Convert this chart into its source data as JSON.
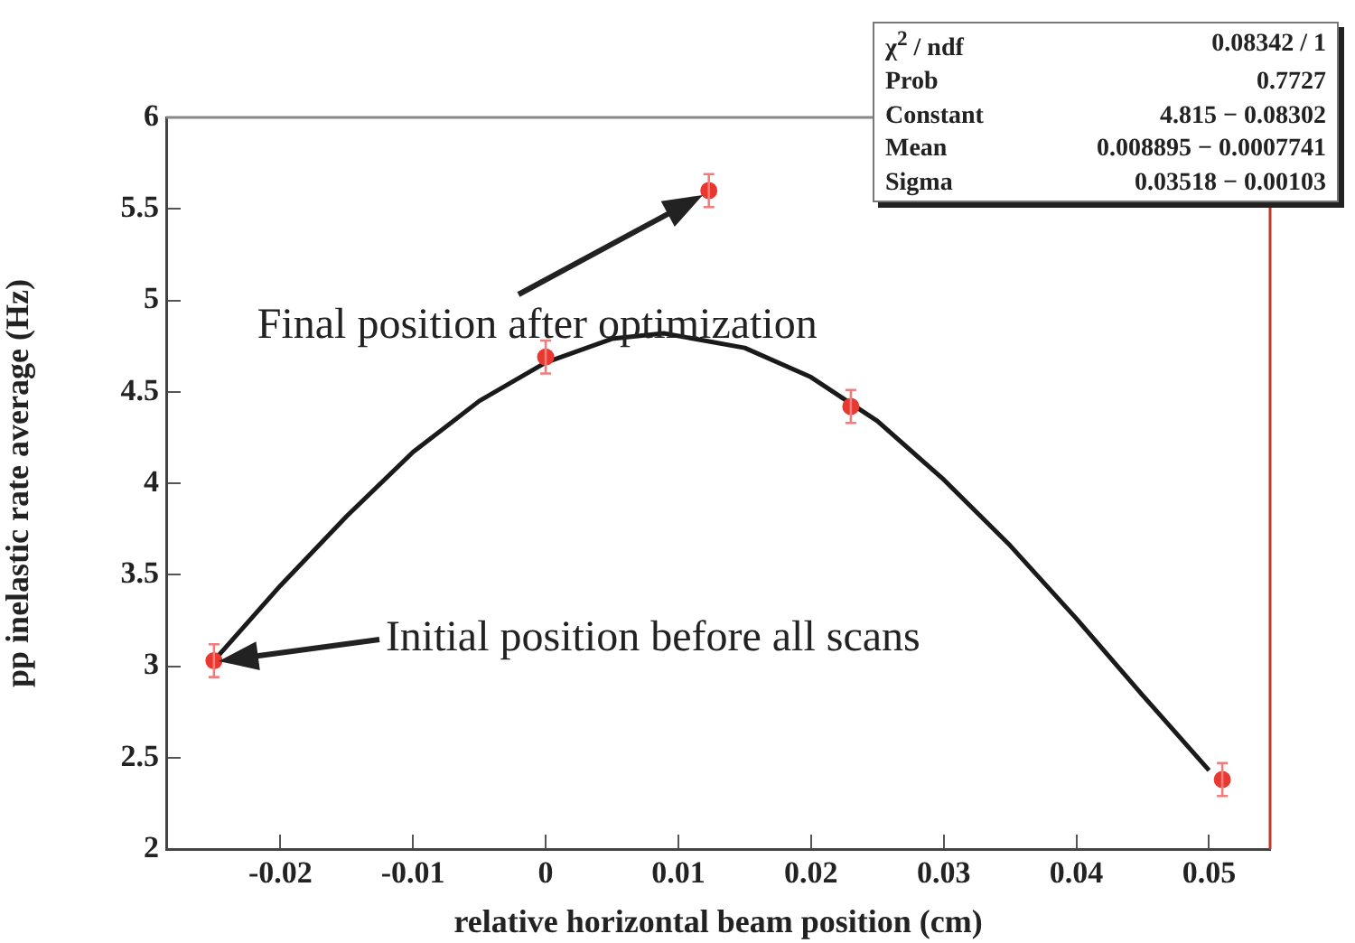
{
  "chart_data": {
    "type": "scatter",
    "xlabel": "relative horizontal beam position (cm)",
    "ylabel": "pp inelastic rate average (Hz)",
    "xlim": [
      -0.0286,
      0.0546
    ],
    "xticks": [
      -0.02,
      -0.01,
      0,
      0.01,
      0.02,
      0.03,
      0.04,
      0.05
    ],
    "ylim": [
      2,
      6
    ],
    "yticks": [
      2,
      2.5,
      3,
      3.5,
      4,
      4.5,
      5,
      5.5,
      6
    ],
    "grid": false,
    "legend": false,
    "marker": "circle",
    "series": [
      {
        "color": "#e8382f",
        "x": [
          -0.025,
          0,
          0.0123,
          0.023,
          0.051
        ],
        "values": [
          3.03,
          4.69,
          5.6,
          4.42,
          2.38
        ],
        "errors": [
          0.09,
          0.09,
          0.09,
          0.09,
          0.09
        ]
      },
      {
        "type": "line",
        "color": "#1a1a1a",
        "line_style": "solid",
        "marker": "none",
        "x": [
          -0.025,
          -0.02,
          -0.015,
          -0.01,
          -0.005,
          0,
          0.005,
          0.008895,
          0.015,
          0.02,
          0.025,
          0.03,
          0.035,
          0.04,
          0.045,
          0.05
        ],
        "values": [
          3.03,
          3.44,
          3.82,
          4.17,
          4.45,
          4.66,
          4.79,
          4.82,
          4.74,
          4.58,
          4.34,
          4.02,
          3.66,
          3.26,
          2.84,
          2.43
        ]
      }
    ],
    "annotations": [
      {
        "text": "Final position after optimization",
        "x": 0.0123,
        "y": 5.6
      },
      "Initial position before all scans",
      "χ$^{2}$ / ndf\t0.08342 / 1",
      "Prob\t0.7727",
      "Constant\t4.815  − 0.08302",
      "Mean\t0.008895  − 0.0007741",
      "Sigma\t0.03518  − 0.00103"
    ]
  }
}
